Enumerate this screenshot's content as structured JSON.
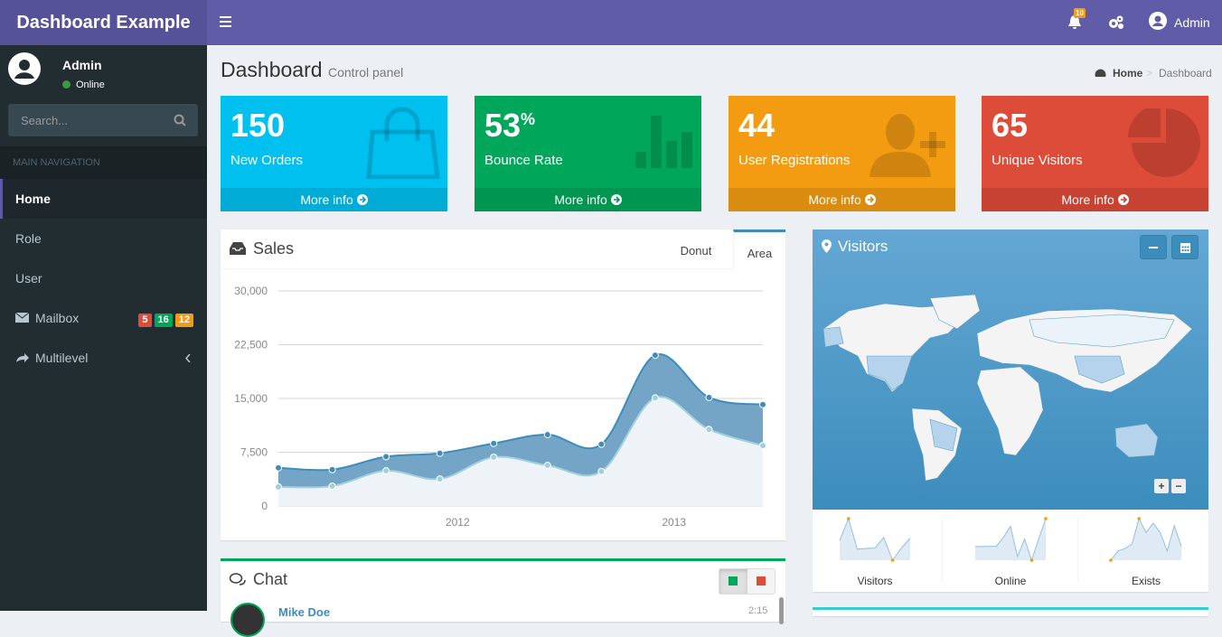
{
  "header": {
    "logo": "Dashboard Example",
    "notifications_badge": "10",
    "user": "Admin"
  },
  "sidebar": {
    "user": {
      "name": "Admin",
      "status": "Online"
    },
    "search_placeholder": "Search...",
    "nav_header": "MAIN NAVIGATION",
    "menu": [
      {
        "label": "Home"
      },
      {
        "label": "Role"
      },
      {
        "label": "User"
      },
      {
        "label": "Mailbox",
        "badges": [
          "5",
          "16",
          "12"
        ]
      },
      {
        "label": "Multilevel"
      }
    ]
  },
  "page": {
    "title": "Dashboard",
    "subtitle": "Control panel",
    "breadcrumb": [
      "Home",
      "Dashboard"
    ]
  },
  "stat_boxes": [
    {
      "value": "150",
      "label": "New Orders",
      "link": "More info"
    },
    {
      "value": "53",
      "unit": "%",
      "label": "Bounce Rate",
      "link": "More info"
    },
    {
      "value": "44",
      "label": "User Registrations",
      "link": "More info"
    },
    {
      "value": "65",
      "label": "Unique Visitors",
      "link": "More info"
    }
  ],
  "sales": {
    "title": "Sales",
    "tabs": [
      "Donut",
      "Area"
    ],
    "chart_data": {
      "type": "area",
      "stacked": true,
      "categories": [
        null,
        null,
        null,
        null,
        null,
        null,
        null,
        null,
        null,
        null
      ],
      "x_labels": [
        "2012",
        "2013"
      ],
      "series": [
        {
          "color": "#a0d0e0",
          "values": [
            2666,
            2778,
            4912,
            3767,
            6810,
            5670,
            4820,
            15073,
            10687,
            8432
          ]
        },
        {
          "color": "#3c8dbc",
          "values": [
            2666,
            2294,
            1969,
            3597,
            1914,
            4293,
            3795,
            5967,
            4460,
            5713
          ]
        }
      ],
      "ylim": [
        0,
        30000
      ],
      "yticks": [
        0,
        {
          "value": 7500,
          "label": "7,500"
        },
        {
          "value": 15000,
          "label": "15,000"
        },
        {
          "value": 22500,
          "label": "22,500"
        },
        {
          "value": 30000,
          "label": "30,000"
        }
      ],
      "grid": true
    }
  },
  "visitors": {
    "title": "Visitors",
    "sparklines": [
      {
        "label": "Visitors",
        "values": [
          1000,
          1200,
          920,
          927,
          931,
          1027,
          819,
          930,
          1021
        ]
      },
      {
        "label": "Online",
        "values": [
          515,
          519,
          520,
          522,
          652,
          810,
          370,
          627,
          319,
          630,
          921
        ]
      },
      {
        "label": "Exists",
        "values": [
          15,
          19,
          20,
          22,
          33,
          27,
          31,
          27,
          19,
          30,
          21
        ]
      }
    ]
  },
  "chat": {
    "title": "Chat",
    "messages": [
      {
        "name": "Mike Doe",
        "time": "2:15"
      }
    ]
  }
}
